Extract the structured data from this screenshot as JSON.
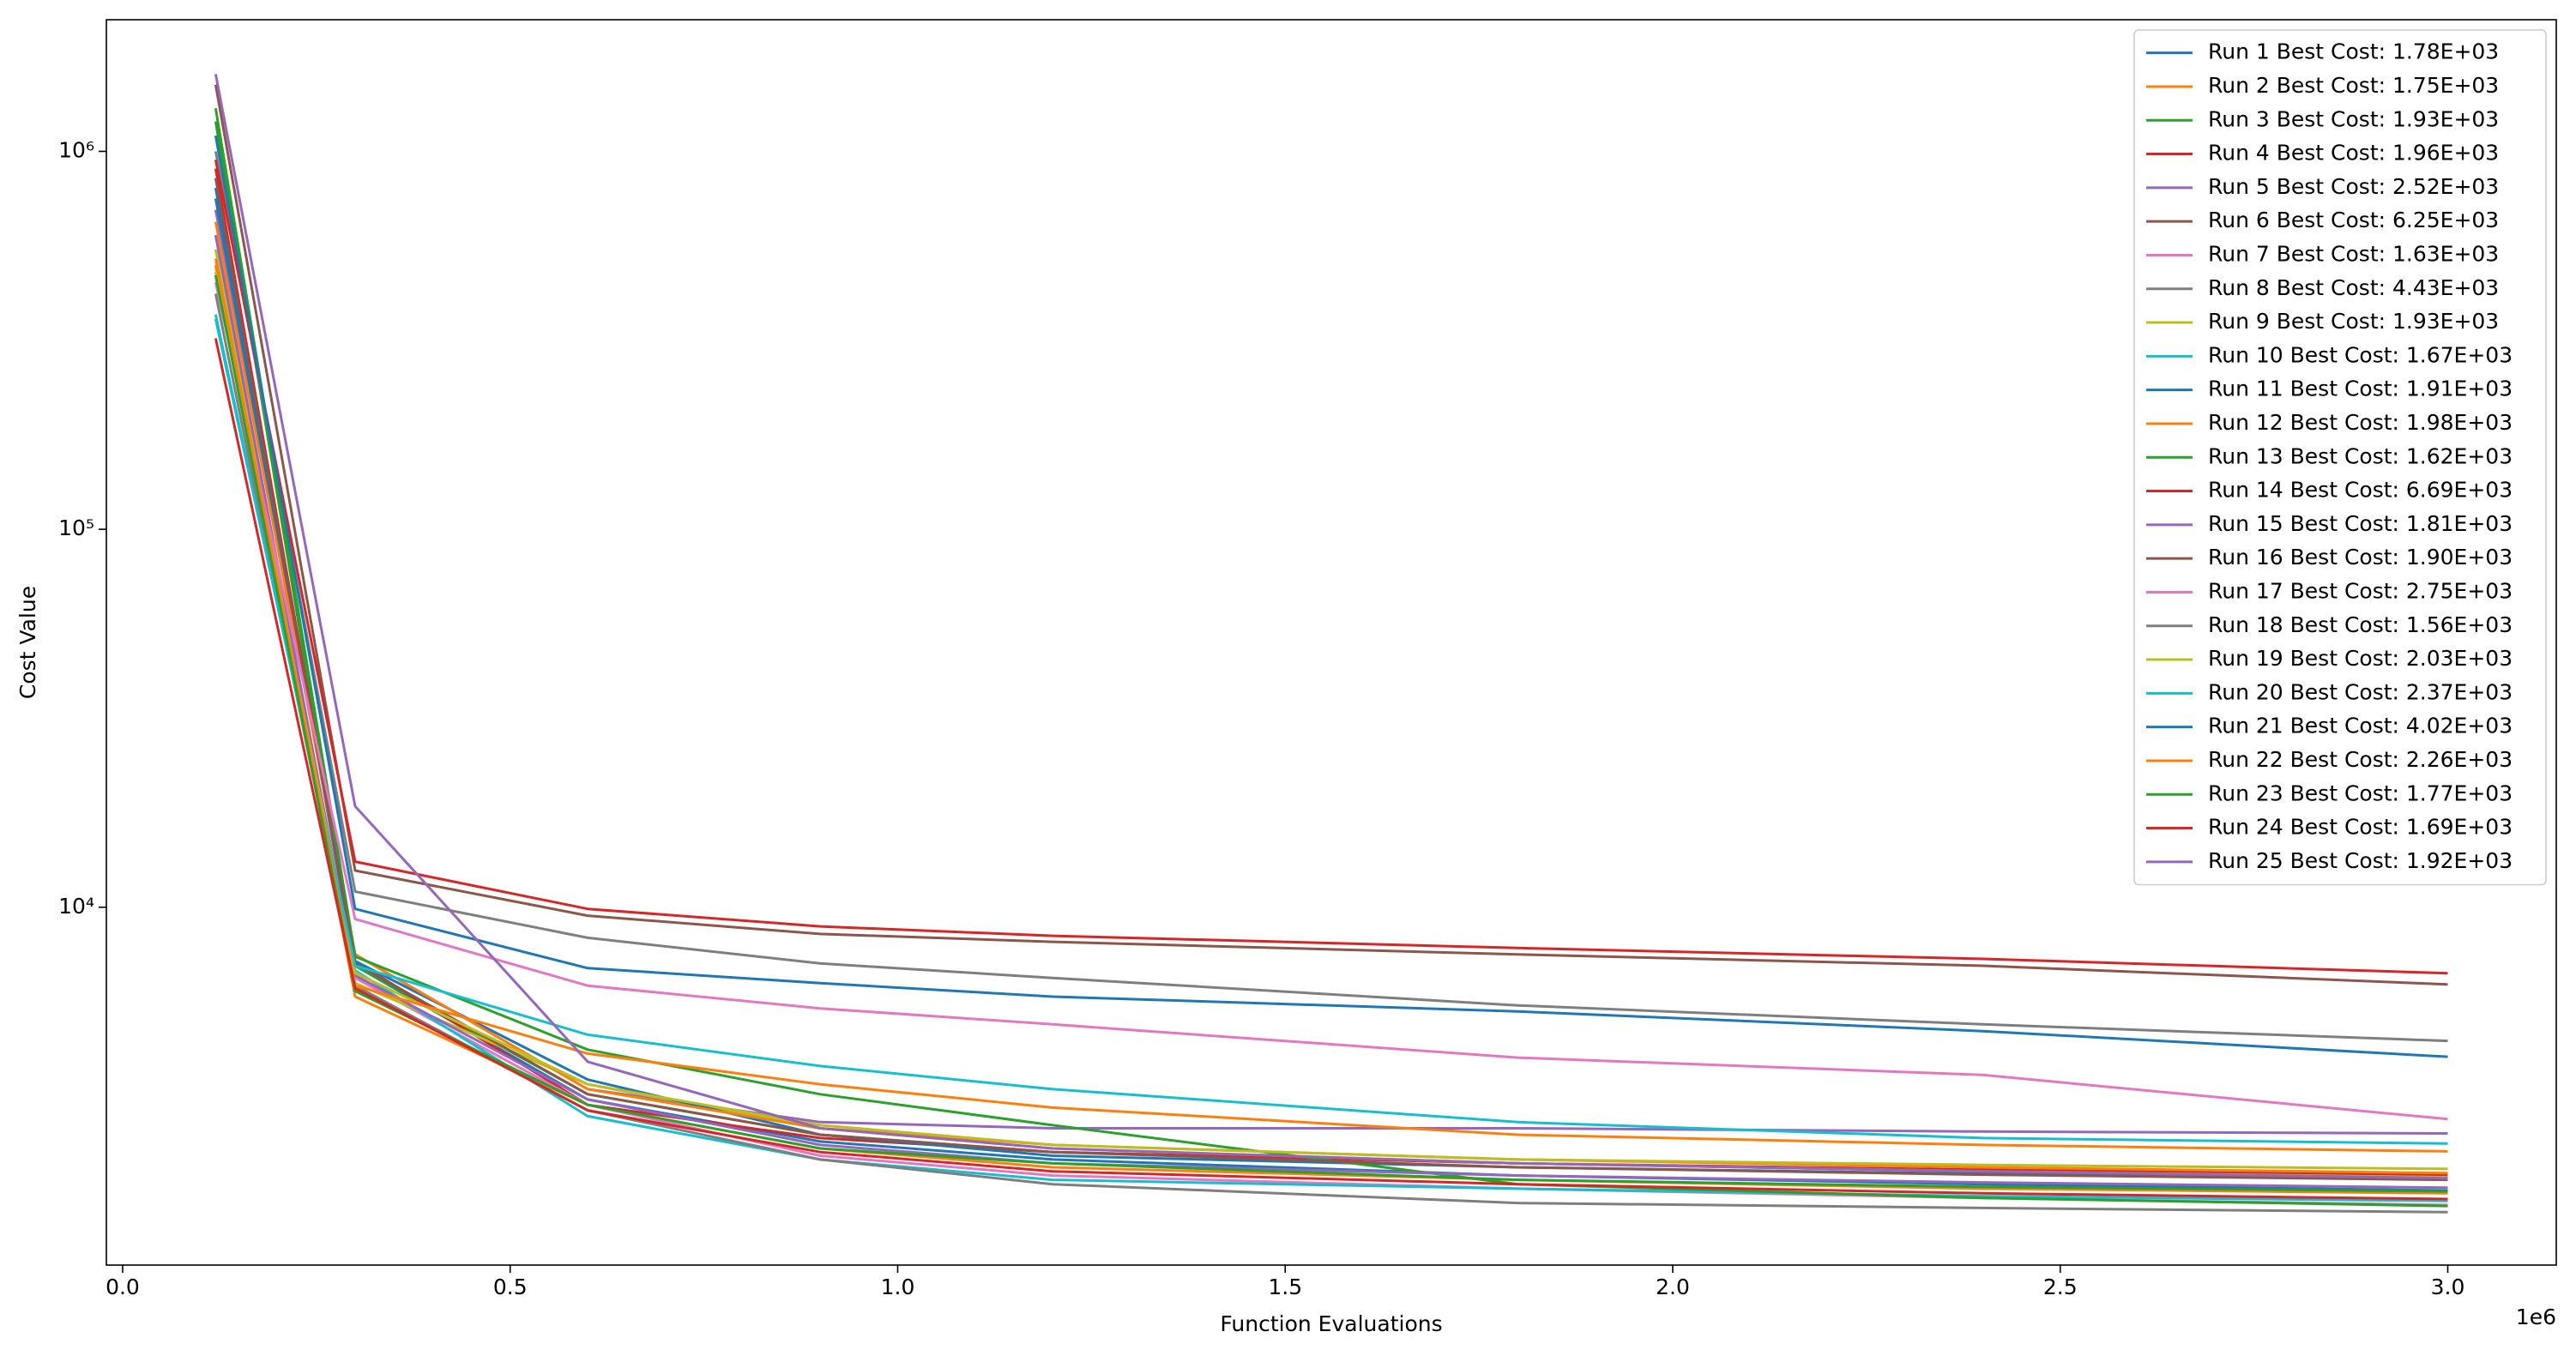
{
  "chart_data": {
    "type": "line",
    "x_label": "Function Evaluations",
    "y_label": "Cost Value",
    "x_offset_label": "1e6",
    "yscale": "log",
    "grid": false,
    "legend_position": "upper right",
    "x": [
      120000,
      300000,
      600000,
      900000,
      1200000,
      1800000,
      2400000,
      3000000
    ],
    "xlim": [
      -21000,
      3140000
    ],
    "xticks": [
      {
        "value": 0,
        "label": "0.0"
      },
      {
        "value": 500000,
        "label": "0.5"
      },
      {
        "value": 1000000,
        "label": "1.0"
      },
      {
        "value": 1500000,
        "label": "1.5"
      },
      {
        "value": 2000000,
        "label": "2.0"
      },
      {
        "value": 2500000,
        "label": "2.5"
      },
      {
        "value": 3000000,
        "label": "3.0"
      }
    ],
    "ylim": [
      1130,
      2230000
    ],
    "yticks": [
      {
        "value": 10000,
        "label": "10⁴"
      },
      {
        "value": 100000,
        "label": "10⁵"
      },
      {
        "value": 1000000,
        "label": "10⁶"
      }
    ],
    "series": [
      {
        "name": "Run 1 Best Cost: 1.78E+03",
        "color": "#1f77b4",
        "values": [
          800000,
          7000,
          3100,
          2400,
          2150,
          1950,
          1850,
          1780
        ]
      },
      {
        "name": "Run 2 Best Cost: 1.75E+03",
        "color": "#ff7f0e",
        "values": [
          500000,
          5800,
          3000,
          2300,
          2050,
          1900,
          1800,
          1750
        ]
      },
      {
        "name": "Run 3 Best Cost: 1.93E+03",
        "color": "#2ca02c",
        "values": [
          1200000,
          7000,
          3200,
          2500,
          2250,
          2100,
          2000,
          1930
        ]
      },
      {
        "name": "Run 4 Best Cost: 1.96E+03",
        "color": "#d62728",
        "values": [
          900000,
          7200,
          3000,
          2450,
          2250,
          2100,
          2020,
          1960
        ]
      },
      {
        "name": "Run 5 Best Cost: 2.52E+03",
        "color": "#9467bd",
        "values": [
          700000,
          7500,
          3300,
          2700,
          2600,
          2600,
          2550,
          2520
        ]
      },
      {
        "name": "Run 6 Best Cost: 6.25E+03",
        "color": "#8c564b",
        "values": [
          1500000,
          12500,
          9500,
          8500,
          8100,
          7500,
          7000,
          6250
        ]
      },
      {
        "name": "Run 7 Best Cost: 1.63E+03",
        "color": "#e377c2",
        "values": [
          600000,
          6500,
          3000,
          2200,
          1950,
          1800,
          1700,
          1630
        ]
      },
      {
        "name": "Run 8 Best Cost: 4.43E+03",
        "color": "#7f7f7f",
        "values": [
          1000000,
          11000,
          8300,
          7100,
          6500,
          5500,
          4900,
          4430
        ]
      },
      {
        "name": "Run 9 Best Cost: 1.93E+03",
        "color": "#bcbd22",
        "values": [
          550000,
          6300,
          3400,
          2600,
          2300,
          2100,
          2000,
          1930
        ]
      },
      {
        "name": "Run 10 Best Cost: 1.67E+03",
        "color": "#17becf",
        "values": [
          370000,
          6800,
          2800,
          2150,
          1900,
          1800,
          1720,
          1670
        ]
      },
      {
        "name": "Run 11 Best Cost: 1.91E+03",
        "color": "#1f77b4",
        "values": [
          750000,
          7200,
          3500,
          2500,
          2200,
          2050,
          1970,
          1910
        ]
      },
      {
        "name": "Run 12 Best Cost: 1.98E+03",
        "color": "#ff7f0e",
        "values": [
          650000,
          7500,
          3300,
          2600,
          2350,
          2150,
          2050,
          1980
        ]
      },
      {
        "name": "Run 13 Best Cost: 1.62E+03",
        "color": "#2ca02c",
        "values": [
          1300000,
          7400,
          4200,
          3200,
          2650,
          1850,
          1700,
          1620
        ]
      },
      {
        "name": "Run 14 Best Cost: 6.69E+03",
        "color": "#d62728",
        "values": [
          950000,
          13200,
          9900,
          8900,
          8400,
          7800,
          7300,
          6690
        ]
      },
      {
        "name": "Run 15 Best Cost: 1.81E+03",
        "color": "#9467bd",
        "values": [
          600000,
          6600,
          3100,
          2350,
          2100,
          1950,
          1870,
          1810
        ]
      },
      {
        "name": "Run 16 Best Cost: 1.90E+03",
        "color": "#8c564b",
        "values": [
          850000,
          7100,
          3200,
          2500,
          2250,
          2050,
          1960,
          1900
        ]
      },
      {
        "name": "Run 17 Best Cost: 2.75E+03",
        "color": "#e377c2",
        "values": [
          450000,
          9300,
          6200,
          5400,
          4900,
          4000,
          3600,
          2750
        ]
      },
      {
        "name": "Run 18 Best Cost: 1.56E+03",
        "color": "#7f7f7f",
        "values": [
          420000,
          6200,
          2900,
          2150,
          1850,
          1650,
          1600,
          1560
        ]
      },
      {
        "name": "Run 19 Best Cost: 2.03E+03",
        "color": "#bcbd22",
        "values": [
          480000,
          6700,
          3400,
          2650,
          2350,
          2150,
          2080,
          2030
        ]
      },
      {
        "name": "Run 20 Best Cost: 2.37E+03",
        "color": "#17becf",
        "values": [
          360000,
          7000,
          4600,
          3800,
          3300,
          2700,
          2450,
          2370
        ]
      },
      {
        "name": "Run 21 Best Cost: 4.02E+03",
        "color": "#1f77b4",
        "values": [
          1100000,
          9900,
          6900,
          6300,
          5800,
          5300,
          4700,
          4020
        ]
      },
      {
        "name": "Run 22 Best Cost: 2.26E+03",
        "color": "#ff7f0e",
        "values": [
          520000,
          6200,
          4100,
          3400,
          2950,
          2500,
          2350,
          2260
        ]
      },
      {
        "name": "Run 23 Best Cost: 1.77E+03",
        "color": "#2ca02c",
        "values": [
          470000,
          6000,
          3000,
          2300,
          2100,
          1900,
          1820,
          1770
        ]
      },
      {
        "name": "Run 24 Best Cost: 1.69E+03",
        "color": "#d62728",
        "values": [
          320000,
          6100,
          2900,
          2250,
          2000,
          1850,
          1750,
          1690
        ]
      },
      {
        "name": "Run 25 Best Cost: 1.92E+03",
        "color": "#9467bd",
        "values": [
          1600000,
          18500,
          3900,
          2600,
          2300,
          2100,
          2000,
          1920
        ]
      }
    ]
  }
}
